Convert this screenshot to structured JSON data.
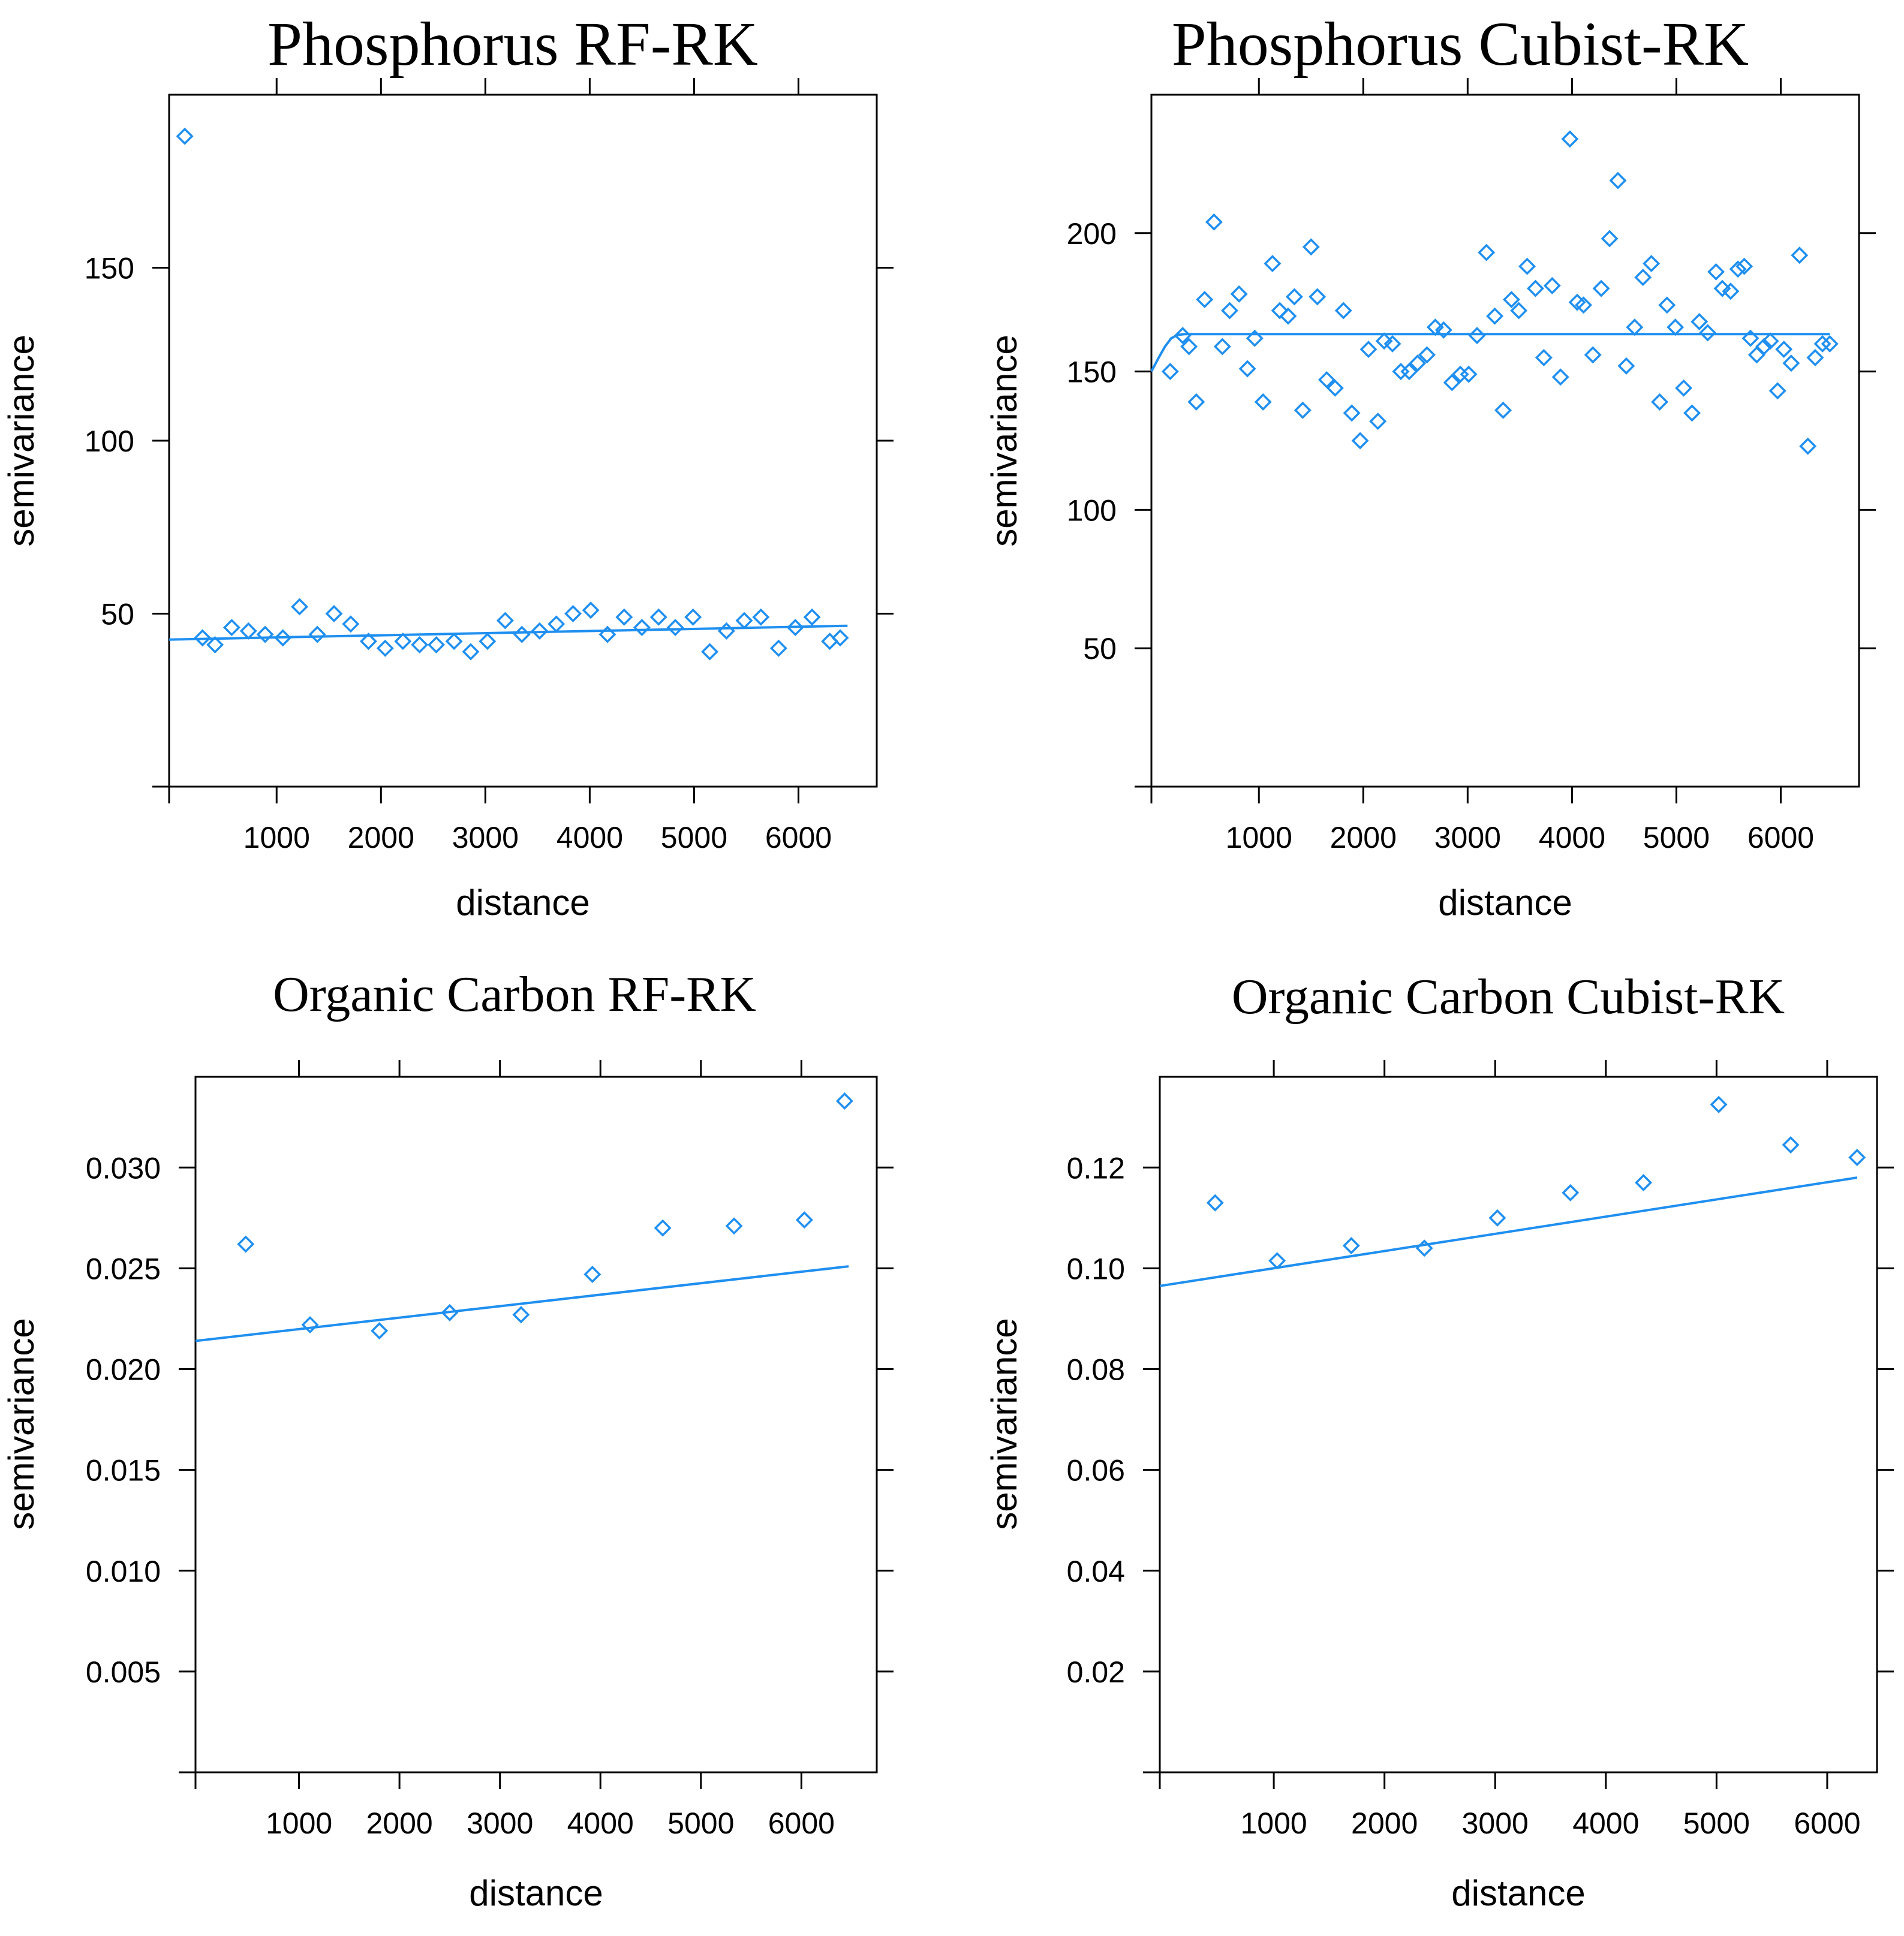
{
  "chart_data": [
    {
      "type": "scatter",
      "title": "Phosphorus RF-RK",
      "xlabel": "distance",
      "ylabel": "semivariance",
      "xlim": [
        -30,
        6750
      ],
      "ylim": [
        0,
        200
      ],
      "xticks": [
        1000,
        2000,
        3000,
        4000,
        5000,
        6000
      ],
      "xtick_labels": [
        "1000",
        "2000",
        "3000",
        "4000",
        "5000",
        "6000"
      ],
      "yticks": [
        50,
        100,
        150
      ],
      "ytick_labels": [
        "50",
        "100",
        "150"
      ],
      "points": {
        "x": [
          120,
          290,
          410,
          570,
          730,
          890,
          1060,
          1220,
          1390,
          1550,
          1710,
          1880,
          2040,
          2210,
          2370,
          2530,
          2700,
          2860,
          3020,
          3190,
          3350,
          3520,
          3680,
          3840,
          4010,
          4170,
          4330,
          4500,
          4660,
          4820,
          4990,
          5150,
          5310,
          5480,
          5640,
          5810,
          5970,
          6130,
          6300,
          6400
        ],
        "y": [
          188,
          43,
          41,
          46,
          45,
          44,
          43,
          52,
          44,
          50,
          47,
          42,
          40,
          42,
          41,
          41,
          42,
          39,
          42,
          48,
          44,
          45,
          47,
          50,
          51,
          44,
          49,
          46,
          49,
          46,
          49,
          39,
          45,
          48,
          49,
          40,
          46,
          49,
          42,
          43
        ]
      },
      "fit": {
        "x": [
          -30,
          6470
        ],
        "y": [
          42.5,
          46.5
        ]
      }
    },
    {
      "type": "scatter",
      "title": "Phosphorus Cubist-RK",
      "xlabel": "distance",
      "ylabel": "semivariance",
      "xlim": [
        -30,
        6750
      ],
      "ylim": [
        0,
        250
      ],
      "xticks": [
        1000,
        2000,
        3000,
        4000,
        5000,
        6000
      ],
      "xtick_labels": [
        "1000",
        "2000",
        "3000",
        "4000",
        "5000",
        "6000"
      ],
      "yticks": [
        50,
        100,
        150,
        200
      ],
      "ytick_labels": [
        "50",
        "100",
        "150",
        "200"
      ],
      "points": {
        "x": [
          150,
          270,
          330,
          400,
          480,
          570,
          650,
          720,
          810,
          890,
          960,
          1040,
          1130,
          1200,
          1280,
          1340,
          1420,
          1500,
          1560,
          1650,
          1730,
          1810,
          1890,
          1970,
          2050,
          2140,
          2200,
          2280,
          2360,
          2440,
          2520,
          2610,
          2690,
          2770,
          2850,
          2930,
          3010,
          3090,
          3180,
          3260,
          3340,
          3420,
          3490,
          3570,
          3650,
          3730,
          3810,
          3890,
          3980,
          4050,
          4110,
          4200,
          4280,
          4360,
          4440,
          4520,
          4600,
          4680,
          4760,
          4840,
          4910,
          4990,
          5070,
          5150,
          5220,
          5300,
          5380,
          5440,
          5520,
          5590,
          5650,
          5710,
          5770,
          5840,
          5900,
          5970,
          6030,
          6100,
          6180,
          6260,
          6330,
          6400,
          6470
        ],
        "y": [
          150,
          163,
          159,
          139,
          176,
          204,
          159,
          172,
          178,
          151,
          162,
          139,
          189,
          172,
          170,
          177,
          136,
          195,
          177,
          147,
          144,
          172,
          135,
          125,
          158,
          132,
          161,
          160,
          150,
          150,
          153,
          156,
          166,
          165,
          146,
          149,
          149,
          163,
          193,
          170,
          136,
          176,
          172,
          188,
          180,
          155,
          181,
          148,
          234,
          175,
          174,
          156,
          180,
          198,
          219,
          152,
          166,
          184,
          189,
          139,
          174,
          166,
          144,
          135,
          168,
          164,
          186,
          180,
          179,
          187,
          188,
          162,
          156,
          159,
          161,
          143,
          158,
          153,
          192,
          123,
          155,
          160,
          160
        ]
      },
      "fit": {
        "x": [
          -30,
          40,
          100,
          160,
          220,
          290,
          6470
        ],
        "y": [
          150,
          155,
          159,
          162,
          163.2,
          163.5,
          163.5
        ]
      }
    },
    {
      "type": "scatter",
      "title": "Organic Carbon RF-RK",
      "xlabel": "distance",
      "ylabel": "semivariance",
      "xlim": [
        -30,
        6750
      ],
      "ylim": [
        0,
        0.0345
      ],
      "xticks": [
        1000,
        2000,
        3000,
        4000,
        5000,
        6000
      ],
      "xtick_labels": [
        "1000",
        "2000",
        "3000",
        "4000",
        "5000",
        "6000"
      ],
      "yticks": [
        0.005,
        0.01,
        0.015,
        0.02,
        0.025,
        0.03
      ],
      "ytick_labels": [
        "0.005",
        "0.010",
        "0.015",
        "0.020",
        "0.025",
        "0.030"
      ],
      "points": {
        "x": [
          470,
          1110,
          1800,
          2500,
          3210,
          3920,
          4620,
          5330,
          6030,
          6430
        ],
        "y": [
          0.0262,
          0.0222,
          0.0219,
          0.0228,
          0.0227,
          0.0247,
          0.027,
          0.0271,
          0.0274,
          0.0333
        ]
      },
      "fit": {
        "x": [
          -30,
          6470
        ],
        "y": [
          0.0214,
          0.0251
        ]
      }
    },
    {
      "type": "scatter",
      "title": "Organic Carbon Cubist-RK",
      "xlabel": "distance",
      "ylabel": "semivariance",
      "xlim": [
        -30,
        6450
      ],
      "ylim": [
        0,
        0.138
      ],
      "xticks": [
        1000,
        2000,
        3000,
        4000,
        5000,
        6000
      ],
      "xtick_labels": [
        "1000",
        "2000",
        "3000",
        "4000",
        "5000",
        "6000"
      ],
      "yticks": [
        0.02,
        0.04,
        0.06,
        0.08,
        0.1,
        0.12
      ],
      "ytick_labels": [
        "0.02",
        "0.04",
        "0.06",
        "0.08",
        "0.10",
        "0.12"
      ],
      "points": {
        "x": [
          470,
          1030,
          1700,
          2360,
          3020,
          3680,
          4340,
          5020,
          5670,
          6270
        ],
        "y": [
          0.113,
          0.1015,
          0.1045,
          0.104,
          0.11,
          0.115,
          0.117,
          0.1325,
          0.1245,
          0.122
        ]
      },
      "fit": {
        "x": [
          -30,
          6270
        ],
        "y": [
          0.0965,
          0.118
        ]
      }
    }
  ]
}
